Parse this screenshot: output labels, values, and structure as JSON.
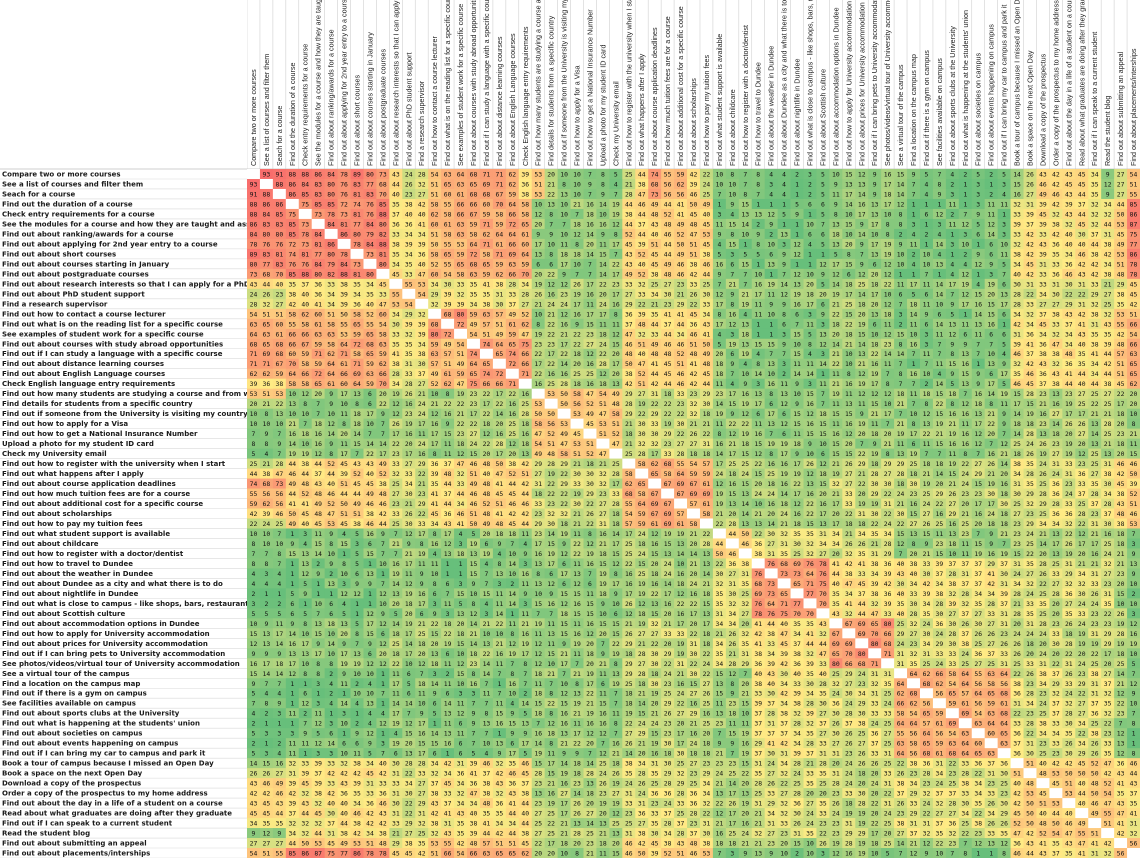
{
  "chart_data": {
    "type": "heatmap",
    "title": "",
    "xlabel": "",
    "ylabel": "",
    "color_scale": {
      "low": "#63be7b",
      "mid": "#ffeb84",
      "high": "#f8696b",
      "diagonal": "#ffffff"
    },
    "value_range": [
      0,
      100
    ],
    "labels": [
      "Compare two or more courses",
      "See a list of courses and filter them",
      "Seach for a course",
      "Find out the duration of a course",
      "Check entry requirements for a course",
      "See the modules for a course and how they are taught and assessed",
      "Find out about ranking/awards for a course",
      "Find out about applying for 2nd year entry to a course",
      "Find out about short courses",
      "Find out about courses starting in January",
      "Find out about postgraduate courses",
      "Find out about research interests so that I can apply for a PhD",
      "Find out about PhD student support",
      "Find a research supervisor",
      "Find out how to contact a course lecturer",
      "Find out what is on the reading list for a specific course",
      "See examples of student work for a specific course",
      "Find out about courses with study abroad opportunities",
      "Find out if I can study a language with a specific course",
      "Find out about distance learning courses",
      "Find out about English Language courses",
      "Check English language entry requirements",
      "Find out how many students are studying a course and from which countries",
      "Find details for students from a specific country",
      "Find out if someone from the University is visiting my country",
      "Find out how to apply for a Visa",
      "Find out how to get a National Insurance Number",
      "Upload a photo for my student ID card",
      "Check my University email",
      "Find out how to register with the university when I start",
      "Find out what happens after I apply",
      "Find out about course application deadlines",
      "Find out how much tuition fees are for a course",
      "Find out about additional cost for a specific course",
      "Find out about scholarships",
      "Find out how to pay my tuition fees",
      "Find out what student support is available",
      "Find out about childcare",
      "Find out how to register with a doctor/dentist",
      "Find out how to travel to Dundee",
      "Find out about the weather in Dundee",
      "Find out about Dundee as a city and what there is to do",
      "Find out about nightlife in Dundee",
      "Find out what is close to campus - like shops, bars, restaurants",
      "Find out about Scottish culture",
      "Find out about accommodation options in Dundee",
      "Find out how to apply for University accommodation",
      "Find out about prices for University accommodation",
      "Find out if I can bring pets to University accommodation",
      "See photos/videos/virtual tour of University accommodation",
      "See a virtual tour of the campus",
      "Find a location on the campus map",
      "Find out if there is a gym on campus",
      "See facilities available on campus",
      "Find out about sports clubs at the University",
      "Find out what is happening at the students' union",
      "Find out about societies on campus",
      "Find out about events happening on campus",
      "Find out if I can bring my car to campus and park it",
      "Book a tour of campus because I missed an Open Day",
      "Book a space on the next Open Day",
      "Download a copy of the prospectus",
      "Order a copy of the prospectus to my home address",
      "Find out about the day in a life of a student on a course",
      "Read about what graduates are doing after they graduate",
      "Find out if I can speak to a current student",
      "Read the student blog",
      "Find out about submitting an appeal",
      "Find out about placements/interships"
    ],
    "row_labels_display": [
      "Compare two or more courses",
      "See a list of courses and filter them",
      "Seach for a course",
      "Find out the duration of a course",
      "Check entry requirements for a course",
      "See the modules for a course and how they are taught and assessed",
      "Find out about ranking/awards for a course",
      "Find out about applying for 2nd year entry to a course",
      "Find out about short courses",
      "Find out about courses starting in January",
      "Find out about postgraduate courses",
      "Find out about research interests so that I can apply for a PhD",
      "Find out about PhD student support",
      "Find a research supervisor",
      "Find out how to contact a course lecturer",
      "Find out what is on the reading list for a specific course",
      "See examples of student work for a specific course",
      "Find out about courses with study abroad opportunities",
      "Find out if I can study a language with a specific course",
      "Find out about distance learning courses",
      "Find out about English Language courses",
      "Check English language entry requirements",
      "Find out how many students are studying a course and from which countries",
      "Find details for students from a specific country",
      "Find out if someone from the University is visiting my country",
      "Find out how to apply for a Visa",
      "Find out how to get a National Insurance Number",
      "Upload a photo for my student ID card",
      "Check my University email",
      "Find out how to register with the university when I start",
      "Find out what happens after I apply",
      "Find out about course application deadlines",
      "Find out how much tuition fees are for a course",
      "Find out about additional cost for a specific course",
      "Find out about scholarships",
      "Find out how to pay my tuition fees",
      "Find out what student support is available",
      "Find out about childcare",
      "Find out how to register with a doctor/dentist",
      "Find out how to travel to Dundee",
      "Find out about the weather in Dundee",
      "Find out about Dundee as a city and what there is to do",
      "Find out about nightlife in Dundee",
      "Find out what is close to campus - like shops, bars, restaurants",
      "Find out about Scottish culture",
      "Find out about accommodation options in Dundee",
      "Find out how to apply for University accommodation",
      "Find out about prices for University accommodation",
      "Find out if I can bring pets to University accommodation",
      "See photos/videos/virtual tour of University accommodation",
      "See a virtual tour of the campus",
      "Find a location on the campus map",
      "Find out if there is a gym on campus",
      "See facilities available on campus",
      "Find out about sports clubs at the University",
      "Find out what is happening at the students' union",
      "Find out about societies on campus",
      "Find out about events happening on campus",
      "Find out if I can bring my car to campus and park it",
      "Book a tour of campus because I missed an Open Day",
      "Book a space on the next Open Day",
      "Download a copy of the prospectus",
      "Order a copy of the prospectus to my home address",
      "Find out about the day in a life of a student on a course",
      "Read about what graduates are doing after they graduate",
      "Find out if I can speak to a current student",
      "Read the student blog",
      "Find out about submitting an appeal",
      "Find out about placements/interships"
    ],
    "row_values_read": [
      [
        null,
        93,
        91,
        88,
        88,
        86,
        84,
        78,
        89,
        80,
        73,
        43,
        24,
        28,
        54,
        63,
        64,
        68,
        71,
        71,
        62,
        39,
        53,
        20,
        10,
        10,
        7,
        8,
        5,
        25,
        44,
        74,
        55,
        59,
        42,
        22,
        10,
        8,
        7,
        8,
        4,
        4,
        2,
        3,
        5,
        10,
        15,
        12,
        9,
        16,
        15,
        9,
        5,
        7,
        4,
        2,
        5,
        2,
        5,
        14,
        26,
        43,
        42,
        43,
        45,
        34,
        9,
        27,
        54
      ],
      [
        93,
        null,
        88,
        86,
        84,
        83,
        80,
        76,
        83,
        77,
        68,
        44,
        26,
        32,
        51,
        65,
        63,
        65,
        69,
        71,
        62,
        36,
        51,
        21,
        8,
        10,
        9,
        8,
        4,
        21,
        38,
        68,
        56,
        62,
        39,
        24,
        10,
        10,
        7,
        8,
        3,
        4,
        1,
        2,
        5,
        9,
        13,
        13,
        9,
        17,
        14,
        7,
        4,
        8,
        2,
        1,
        3,
        1,
        3,
        15,
        26,
        46,
        42,
        45,
        45,
        35,
        12,
        27,
        51
      ],
      [
        91,
        88,
        null,
        86,
        85,
        83,
        80,
        76,
        81,
        83,
        70,
        40,
        23,
        27,
        51,
        60,
        61,
        68,
        68,
        67,
        59,
        38,
        53,
        22,
        13,
        10,
        7,
        9,
        7,
        28,
        47,
        73,
        56,
        56,
        46,
        25,
        7,
        10,
        8,
        7,
        4,
        4,
        1,
        2,
        5,
        11,
        17,
        14,
        9,
        18,
        14,
        7,
        4,
        9,
        3,
        1,
        3,
        2,
        4,
        16,
        27,
        49,
        46,
        43,
        44,
        35,
        9,
        27,
        55
      ]
    ]
  }
}
